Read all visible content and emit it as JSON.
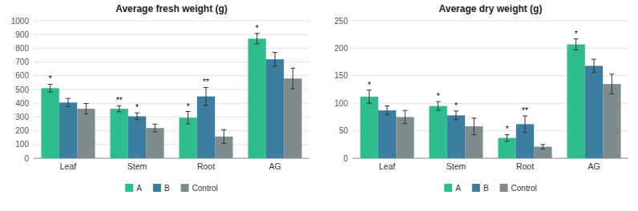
{
  "chart_data": [
    {
      "type": "bar",
      "title": "Average fresh weight (g)",
      "categories": [
        "Leaf",
        "Stem",
        "Root",
        "AG"
      ],
      "series": [
        {
          "name": "A",
          "color": "#2DBD8E",
          "values": [
            510,
            360,
            295,
            870
          ],
          "errors": [
            28,
            22,
            45,
            38
          ],
          "annotations": [
            "*",
            "**",
            "*",
            "*"
          ]
        },
        {
          "name": "B",
          "color": "#3B7EA1",
          "values": [
            405,
            305,
            450,
            720
          ],
          "errors": [
            30,
            25,
            65,
            50
          ],
          "annotations": [
            null,
            "*",
            "**",
            null
          ]
        },
        {
          "name": "Control",
          "color": "#7F8C8D",
          "values": [
            360,
            220,
            158,
            580
          ],
          "errors": [
            38,
            28,
            50,
            75
          ]
        }
      ],
      "ylim": [
        0,
        1000
      ],
      "yticks": [
        0,
        100,
        200,
        300,
        400,
        500,
        600,
        700,
        800,
        900,
        1000
      ],
      "grid": true,
      "legend": "bottom"
    },
    {
      "type": "bar",
      "title": "Average dry weight (g)",
      "categories": [
        "Leaf",
        "Stem",
        "Root",
        "AG"
      ],
      "series": [
        {
          "name": "A",
          "color": "#2DBD8E",
          "values": [
            112,
            95,
            37,
            207
          ],
          "errors": [
            12,
            8,
            6,
            10
          ],
          "annotations": [
            "*",
            "*",
            "*",
            "*"
          ]
        },
        {
          "name": "B",
          "color": "#3B7EA1",
          "values": [
            87,
            78,
            62,
            168
          ],
          "errors": [
            8,
            8,
            15,
            12
          ],
          "annotations": [
            null,
            "*",
            "**",
            null
          ]
        },
        {
          "name": "Control",
          "color": "#7F8C8D",
          "values": [
            75,
            58,
            21,
            135
          ],
          "errors": [
            12,
            15,
            4,
            18
          ]
        }
      ],
      "ylim": [
        0,
        250
      ],
      "yticks": [
        0,
        50,
        100,
        150,
        200,
        250
      ],
      "grid": true,
      "legend": "bottom"
    }
  ]
}
